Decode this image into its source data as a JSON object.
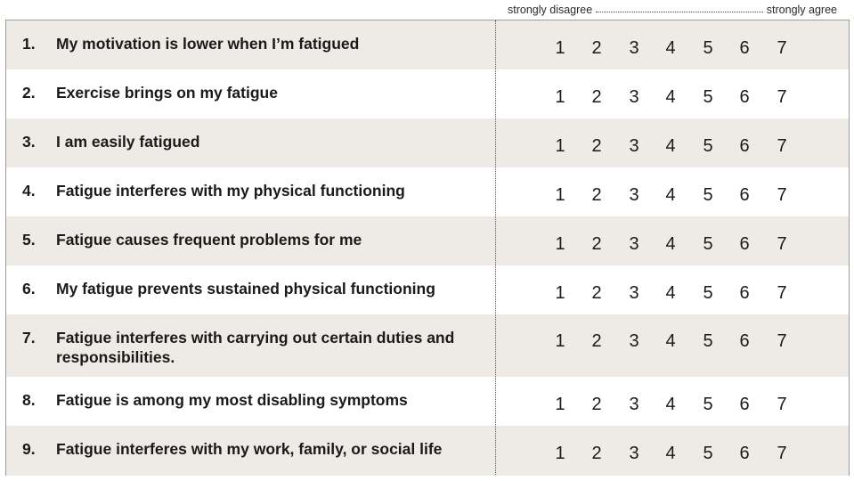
{
  "scale": {
    "left_label": "strongly disagree",
    "right_label": "strongly agree"
  },
  "items": [
    {
      "number": "1.",
      "text": "My motivation is lower when I’m fatigued"
    },
    {
      "number": "2.",
      "text": "Exercise brings on my fatigue"
    },
    {
      "number": "3.",
      "text": "I am easily fatigued"
    },
    {
      "number": "4.",
      "text": "Fatigue interferes with my physical functioning"
    },
    {
      "number": "5.",
      "text": "Fatigue causes frequent problems for me"
    },
    {
      "number": "6.",
      "text": "My fatigue prevents sustained physical functioning"
    },
    {
      "number": "7.",
      "text": "Fatigue interferes with carrying out certain duties and responsibilities."
    },
    {
      "number": "8.",
      "text": "Fatigue is among my most disabling symptoms"
    },
    {
      "number": "9.",
      "text": "Fatigue interferes with my work, family, or social life"
    }
  ],
  "ratings": [
    "1",
    "2",
    "3",
    "4",
    "5",
    "6",
    "7"
  ]
}
